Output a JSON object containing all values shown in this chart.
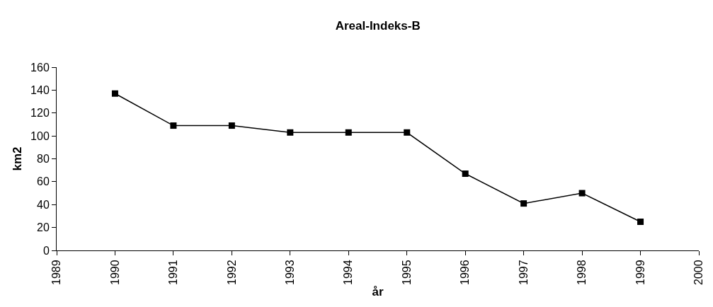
{
  "chart_data": {
    "type": "line",
    "title": "Areal-Indeks-B",
    "xlabel": "år",
    "ylabel": "km2",
    "x": [
      1990,
      1991,
      1992,
      1993,
      1994,
      1995,
      1996,
      1997,
      1998,
      1999
    ],
    "series": [
      {
        "color": "#000000",
        "values": [
          137,
          109,
          109,
          103,
          103,
          103,
          67,
          41,
          50,
          25
        ]
      }
    ],
    "xlim": [
      1989,
      2000
    ],
    "xticks": [
      1989,
      1990,
      1991,
      1992,
      1993,
      1994,
      1995,
      1996,
      1997,
      1998,
      1999,
      2000
    ],
    "ylim": [
      0,
      160
    ],
    "yticks": [
      0,
      20,
      40,
      60,
      80,
      100,
      120,
      140,
      160
    ],
    "grid": false,
    "marker": "square",
    "line_style": "solid"
  }
}
